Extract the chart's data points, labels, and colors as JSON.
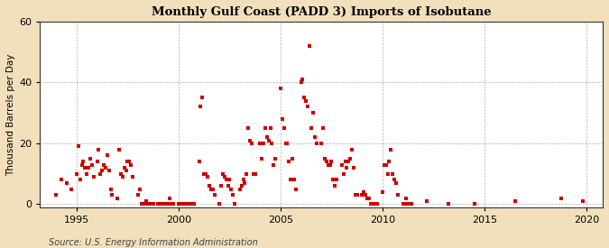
{
  "title": "Monthly Gulf Coast (PADD 3) Imports of Isobutane",
  "ylabel": "Thousand Barrels per Day",
  "source": "Source: U.S. Energy Information Administration",
  "background_color": "#f2e0bc",
  "plot_bg_color": "#ffffff",
  "marker_color": "#cc0000",
  "marker_size": 5,
  "xlim": [
    1993.2,
    2020.8
  ],
  "ylim": [
    -1,
    60
  ],
  "yticks": [
    0,
    20,
    40,
    60
  ],
  "xticks": [
    1995,
    2000,
    2005,
    2010,
    2015,
    2020
  ],
  "data": [
    [
      1994.0,
      3
    ],
    [
      1994.25,
      8
    ],
    [
      1994.5,
      7
    ],
    [
      1994.75,
      5
    ],
    [
      1995.0,
      10
    ],
    [
      1995.08,
      19
    ],
    [
      1995.17,
      8
    ],
    [
      1995.25,
      13
    ],
    [
      1995.33,
      14
    ],
    [
      1995.42,
      12
    ],
    [
      1995.5,
      10
    ],
    [
      1995.58,
      12
    ],
    [
      1995.67,
      15
    ],
    [
      1995.75,
      13
    ],
    [
      1995.83,
      9
    ],
    [
      1996.0,
      14
    ],
    [
      1996.08,
      18
    ],
    [
      1996.17,
      10
    ],
    [
      1996.25,
      11
    ],
    [
      1996.33,
      13
    ],
    [
      1996.42,
      12
    ],
    [
      1996.5,
      16
    ],
    [
      1996.58,
      11
    ],
    [
      1996.67,
      5
    ],
    [
      1996.75,
      3
    ],
    [
      1997.0,
      2
    ],
    [
      1997.08,
      18
    ],
    [
      1997.17,
      10
    ],
    [
      1997.25,
      9
    ],
    [
      1997.33,
      12
    ],
    [
      1997.42,
      11
    ],
    [
      1997.5,
      14
    ],
    [
      1997.58,
      14
    ],
    [
      1997.67,
      13
    ],
    [
      1997.75,
      9
    ],
    [
      1998.0,
      3
    ],
    [
      1998.08,
      5
    ],
    [
      1998.17,
      0
    ],
    [
      1998.25,
      0
    ],
    [
      1998.33,
      0
    ],
    [
      1998.42,
      1
    ],
    [
      1998.5,
      0
    ],
    [
      1998.58,
      0
    ],
    [
      1998.67,
      0
    ],
    [
      1998.75,
      0
    ],
    [
      1999.0,
      0
    ],
    [
      1999.08,
      0
    ],
    [
      1999.17,
      0
    ],
    [
      1999.25,
      0
    ],
    [
      1999.33,
      0
    ],
    [
      1999.42,
      0
    ],
    [
      1999.5,
      0
    ],
    [
      1999.58,
      2
    ],
    [
      1999.67,
      0
    ],
    [
      1999.75,
      0
    ],
    [
      2000.0,
      0
    ],
    [
      2000.08,
      0
    ],
    [
      2000.17,
      0
    ],
    [
      2000.25,
      0
    ],
    [
      2000.33,
      0
    ],
    [
      2000.42,
      0
    ],
    [
      2000.5,
      0
    ],
    [
      2000.58,
      0
    ],
    [
      2000.67,
      0
    ],
    [
      2000.75,
      0
    ],
    [
      2001.0,
      14
    ],
    [
      2001.08,
      32
    ],
    [
      2001.17,
      35
    ],
    [
      2001.25,
      10
    ],
    [
      2001.33,
      10
    ],
    [
      2001.42,
      9
    ],
    [
      2001.5,
      6
    ],
    [
      2001.58,
      5
    ],
    [
      2001.67,
      5
    ],
    [
      2001.75,
      3
    ],
    [
      2002.0,
      0
    ],
    [
      2002.08,
      6
    ],
    [
      2002.17,
      10
    ],
    [
      2002.25,
      9
    ],
    [
      2002.33,
      8
    ],
    [
      2002.42,
      6
    ],
    [
      2002.5,
      8
    ],
    [
      2002.58,
      5
    ],
    [
      2002.67,
      3
    ],
    [
      2002.75,
      0
    ],
    [
      2003.0,
      5
    ],
    [
      2003.08,
      6
    ],
    [
      2003.17,
      8
    ],
    [
      2003.25,
      7
    ],
    [
      2003.33,
      10
    ],
    [
      2003.42,
      25
    ],
    [
      2003.5,
      21
    ],
    [
      2003.58,
      20
    ],
    [
      2003.67,
      10
    ],
    [
      2003.75,
      10
    ],
    [
      2004.0,
      20
    ],
    [
      2004.08,
      15
    ],
    [
      2004.17,
      20
    ],
    [
      2004.25,
      25
    ],
    [
      2004.33,
      22
    ],
    [
      2004.42,
      21
    ],
    [
      2004.5,
      25
    ],
    [
      2004.58,
      20
    ],
    [
      2004.67,
      13
    ],
    [
      2004.75,
      15
    ],
    [
      2005.0,
      38
    ],
    [
      2005.08,
      28
    ],
    [
      2005.17,
      25
    ],
    [
      2005.25,
      20
    ],
    [
      2005.33,
      20
    ],
    [
      2005.42,
      14
    ],
    [
      2005.5,
      8
    ],
    [
      2005.58,
      15
    ],
    [
      2005.67,
      8
    ],
    [
      2005.75,
      5
    ],
    [
      2006.0,
      40
    ],
    [
      2006.08,
      41
    ],
    [
      2006.17,
      35
    ],
    [
      2006.25,
      34
    ],
    [
      2006.33,
      32
    ],
    [
      2006.42,
      52
    ],
    [
      2006.5,
      25
    ],
    [
      2006.58,
      30
    ],
    [
      2006.67,
      22
    ],
    [
      2006.75,
      20
    ],
    [
      2007.0,
      20
    ],
    [
      2007.08,
      25
    ],
    [
      2007.17,
      15
    ],
    [
      2007.25,
      14
    ],
    [
      2007.33,
      13
    ],
    [
      2007.42,
      13
    ],
    [
      2007.5,
      14
    ],
    [
      2007.58,
      8
    ],
    [
      2007.67,
      6
    ],
    [
      2007.75,
      8
    ],
    [
      2008.0,
      13
    ],
    [
      2008.08,
      10
    ],
    [
      2008.17,
      14
    ],
    [
      2008.25,
      12
    ],
    [
      2008.33,
      14
    ],
    [
      2008.42,
      15
    ],
    [
      2008.5,
      18
    ],
    [
      2008.58,
      12
    ],
    [
      2008.67,
      3
    ],
    [
      2008.75,
      3
    ],
    [
      2009.0,
      3
    ],
    [
      2009.08,
      4
    ],
    [
      2009.17,
      3
    ],
    [
      2009.25,
      2
    ],
    [
      2009.33,
      2
    ],
    [
      2009.42,
      0
    ],
    [
      2009.5,
      0
    ],
    [
      2009.58,
      0
    ],
    [
      2009.67,
      0
    ],
    [
      2009.75,
      0
    ],
    [
      2010.0,
      4
    ],
    [
      2010.08,
      13
    ],
    [
      2010.17,
      13
    ],
    [
      2010.25,
      10
    ],
    [
      2010.33,
      14
    ],
    [
      2010.42,
      18
    ],
    [
      2010.5,
      10
    ],
    [
      2010.58,
      8
    ],
    [
      2010.67,
      7
    ],
    [
      2010.75,
      3
    ],
    [
      2011.0,
      0
    ],
    [
      2011.08,
      0
    ],
    [
      2011.17,
      2
    ],
    [
      2011.25,
      0
    ],
    [
      2011.33,
      0
    ],
    [
      2011.42,
      0
    ],
    [
      2012.17,
      1
    ],
    [
      2013.25,
      0
    ],
    [
      2014.5,
      0
    ],
    [
      2016.5,
      1
    ],
    [
      2018.75,
      2
    ],
    [
      2019.83,
      1
    ]
  ]
}
